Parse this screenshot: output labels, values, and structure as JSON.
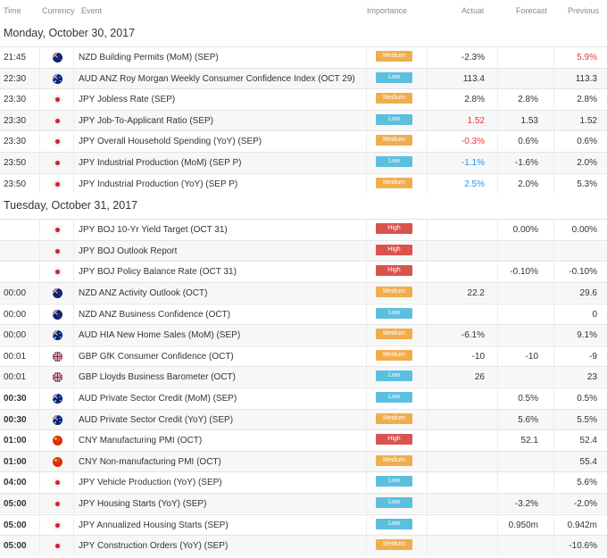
{
  "columns": {
    "time": "Time",
    "currency": "Currency",
    "event": "Event",
    "importance": "Importance",
    "actual": "Actual",
    "forecast": "Forecast",
    "previous": "Previous"
  },
  "colors": {
    "high": "#d9534f",
    "medium": "#f0ad4e",
    "low": "#5bc0de",
    "negative": "#e53935",
    "positive": "#2196f3"
  },
  "days": [
    {
      "label": "Monday, October 30, 2017",
      "rows": [
        {
          "time": "21:45",
          "flag": "nz",
          "event": "NZD Building Permits (MoM) (SEP)",
          "importance": "Medium",
          "actual": "-2.3%",
          "forecast": "",
          "previous": "5.9%",
          "previous_color": "red"
        },
        {
          "time": "22:30",
          "flag": "au",
          "event": "AUD ANZ Roy Morgan Weekly Consumer Confidence Index (OCT 29)",
          "importance": "Low",
          "actual": "113.4",
          "forecast": "",
          "previous": "113.3"
        },
        {
          "time": "23:30",
          "flag": "jp",
          "event": "JPY Jobless Rate (SEP)",
          "importance": "Medium",
          "actual": "2.8%",
          "forecast": "2.8%",
          "previous": "2.8%"
        },
        {
          "time": "23:30",
          "flag": "jp",
          "event": "JPY Job-To-Applicant Ratio (SEP)",
          "importance": "Low",
          "actual": "1.52",
          "actual_color": "red",
          "forecast": "1.53",
          "previous": "1.52"
        },
        {
          "time": "23:30",
          "flag": "jp",
          "event": "JPY Overall Household Spending (YoY) (SEP)",
          "importance": "Medium",
          "actual": "-0.3%",
          "actual_color": "red",
          "forecast": "0.6%",
          "previous": "0.6%"
        },
        {
          "time": "23:50",
          "flag": "jp",
          "event": "JPY Industrial Production (MoM) (SEP P)",
          "importance": "Low",
          "actual": "-1.1%",
          "actual_color": "blue",
          "forecast": "-1.6%",
          "previous": "2.0%"
        },
        {
          "time": "23:50",
          "flag": "jp",
          "event": "JPY Industrial Production (YoY) (SEP P)",
          "importance": "Medium",
          "actual": "2.5%",
          "actual_color": "blue",
          "forecast": "2.0%",
          "previous": "5.3%"
        }
      ]
    },
    {
      "label": "Tuesday, October 31, 2017",
      "rows": [
        {
          "time": "",
          "flag": "jp",
          "event": "JPY BOJ 10-Yr Yield Target (OCT 31)",
          "importance": "High",
          "actual": "",
          "forecast": "0.00%",
          "previous": "0.00%"
        },
        {
          "time": "",
          "flag": "jp",
          "event": "JPY BOJ Outlook Report",
          "importance": "High",
          "actual": "",
          "forecast": "",
          "previous": ""
        },
        {
          "time": "",
          "flag": "jp",
          "event": "JPY BOJ Policy Balance Rate (OCT 31)",
          "importance": "High",
          "actual": "",
          "forecast": "-0.10%",
          "previous": "-0.10%"
        },
        {
          "time": "00:00",
          "flag": "nz",
          "event": "NZD ANZ Activity Outlook (OCT)",
          "importance": "Medium",
          "actual": "22.2",
          "forecast": "",
          "previous": "29.6"
        },
        {
          "time": "00:00",
          "flag": "nz",
          "event": "NZD ANZ Business Confidence (OCT)",
          "importance": "Low",
          "actual": "",
          "forecast": "",
          "previous": "0"
        },
        {
          "time": "00:00",
          "flag": "au",
          "event": "AUD HIA New Home Sales (MoM) (SEP)",
          "importance": "Medium",
          "actual": "-6.1%",
          "forecast": "",
          "previous": "9.1%"
        },
        {
          "time": "00:01",
          "flag": "gb",
          "event": "GBP GfK Consumer Confidence (OCT)",
          "importance": "Medium",
          "actual": "-10",
          "forecast": "-10",
          "previous": "-9"
        },
        {
          "time": "00:01",
          "flag": "gb",
          "event": "GBP Lloyds Business Barometer (OCT)",
          "importance": "Low",
          "actual": "26",
          "forecast": "",
          "previous": "23"
        },
        {
          "time": "00:30",
          "bold": true,
          "flag": "au",
          "event": "AUD Private Sector Credit (MoM) (SEP)",
          "importance": "Low",
          "actual": "",
          "forecast": "0.5%",
          "previous": "0.5%"
        },
        {
          "time": "00:30",
          "bold": true,
          "flag": "au",
          "event": "AUD Private Sector Credit (YoY) (SEP)",
          "importance": "Medium",
          "actual": "",
          "forecast": "5.6%",
          "previous": "5.5%"
        },
        {
          "time": "01:00",
          "bold": true,
          "flag": "cn",
          "event": "CNY Manufacturing PMI (OCT)",
          "importance": "High",
          "actual": "",
          "forecast": "52.1",
          "previous": "52.4"
        },
        {
          "time": "01:00",
          "bold": true,
          "flag": "cn",
          "event": "CNY Non-manufacturing PMI (OCT)",
          "importance": "Medium",
          "actual": "",
          "forecast": "",
          "previous": "55.4"
        },
        {
          "time": "04:00",
          "bold": true,
          "flag": "jp",
          "event": "JPY Vehicle Production (YoY) (SEP)",
          "importance": "Low",
          "actual": "",
          "forecast": "",
          "previous": "5.6%"
        },
        {
          "time": "05:00",
          "bold": true,
          "flag": "jp",
          "event": "JPY Housing Starts (YoY) (SEP)",
          "importance": "Low",
          "actual": "",
          "forecast": "-3.2%",
          "previous": "-2.0%"
        },
        {
          "time": "05:00",
          "bold": true,
          "flag": "jp",
          "event": "JPY Annualized Housing Starts (SEP)",
          "importance": "Low",
          "actual": "",
          "forecast": "0.950m",
          "previous": "0.942m"
        },
        {
          "time": "05:00",
          "bold": true,
          "flag": "jp",
          "event": "JPY Construction Orders (YoY) (SEP)",
          "importance": "Medium",
          "actual": "",
          "forecast": "",
          "previous": "-10.6%"
        }
      ]
    }
  ]
}
